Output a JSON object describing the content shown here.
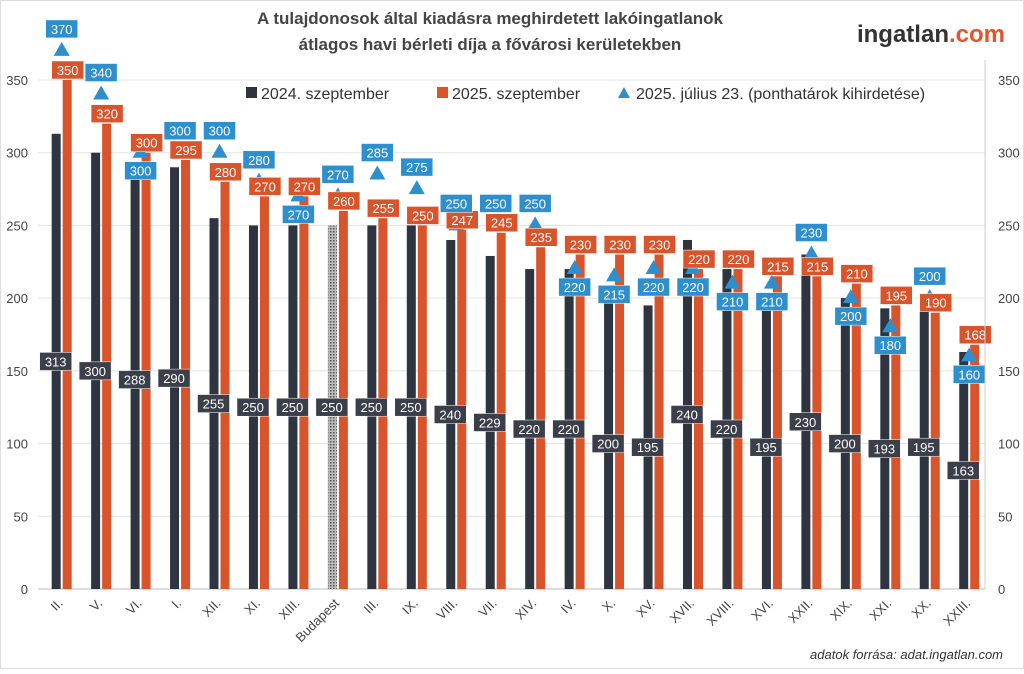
{
  "logo": {
    "main": "ingatlan",
    "suffix": ".com"
  },
  "source": "adatok forrása: adat.ingatlan.com",
  "chart_data": {
    "type": "bar",
    "title": [
      "A tulajdonosok által kiadásra meghirdetett lakóingatlanok",
      "átlagos havi bérleti díja a fővárosi kerületekben"
    ],
    "xlabel": "",
    "ylabel": "",
    "ylim": [
      0,
      350
    ],
    "yticks": [
      0,
      50,
      100,
      150,
      200,
      250,
      300,
      350
    ],
    "grid": true,
    "legend_position": "top-right",
    "categories": [
      "II.",
      "V.",
      "VI.",
      "I.",
      "XII.",
      "XI.",
      "XIII.",
      "Budapest",
      "III.",
      "IX.",
      "VIII.",
      "VII.",
      "XIV.",
      "IV.",
      "X.",
      "XV.",
      "XVII.",
      "XVIII.",
      "XVI.",
      "XXII.",
      "XIX.",
      "XXI.",
      "XX.",
      "XXIII."
    ],
    "series": [
      {
        "name": "2024. szeptember",
        "type": "bar",
        "color": "#2e3440",
        "values": [
          313,
          300,
          288,
          290,
          255,
          250,
          250,
          250,
          250,
          250,
          240,
          229,
          220,
          220,
          200,
          195,
          240,
          220,
          195,
          230,
          200,
          193,
          195,
          163
        ]
      },
      {
        "name": "2025. szeptember",
        "type": "bar",
        "color": "#d9532b",
        "values": [
          350,
          320,
          300,
          295,
          280,
          270,
          270,
          260,
          255,
          250,
          247,
          245,
          235,
          230,
          230,
          230,
          220,
          220,
          215,
          215,
          210,
          195,
          190,
          168
        ]
      },
      {
        "name": "2025. július 23. (ponthatárok kihirdetése)",
        "type": "marker",
        "color": "#2e8fcf",
        "values": [
          370,
          340,
          300,
          300,
          300,
          280,
          270,
          270,
          285,
          275,
          250,
          250,
          250,
          220,
          215,
          220,
          220,
          210,
          210,
          230,
          200,
          180,
          200,
          160
        ]
      }
    ]
  }
}
